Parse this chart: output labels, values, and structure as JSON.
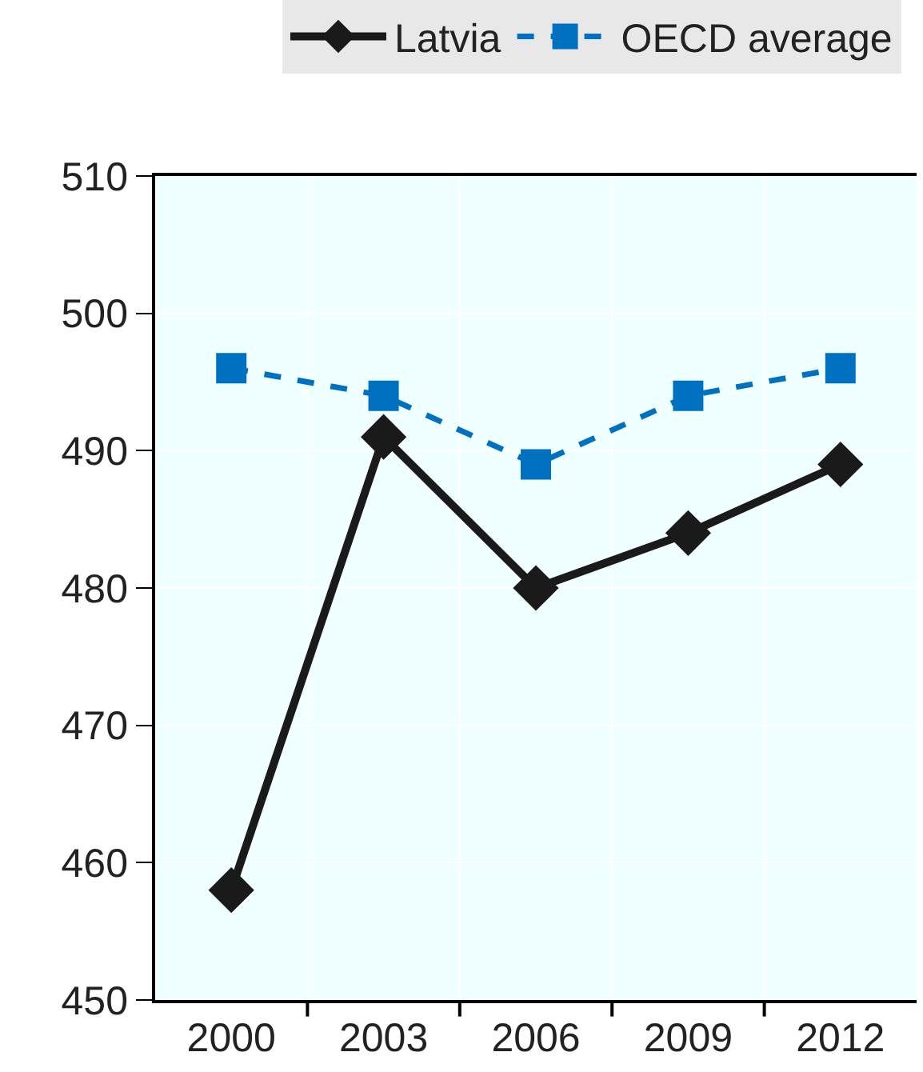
{
  "chart_data": {
    "type": "line",
    "categories": [
      "2000",
      "2003",
      "2006",
      "2009",
      "2012"
    ],
    "series": [
      {
        "name": "Latvia",
        "color": "#1a1a1a",
        "marker": "diamond",
        "line_style": "solid",
        "values": [
          458,
          491,
          480,
          484,
          489
        ]
      },
      {
        "name": "OECD average",
        "color": "#0070c0",
        "marker": "square",
        "line_style": "dashed",
        "values": [
          496,
          494,
          489,
          494,
          496
        ]
      }
    ],
    "ylim": [
      450,
      510
    ],
    "yticks": [
      450,
      460,
      470,
      480,
      490,
      500,
      510
    ],
    "grid": true,
    "legend": "top"
  }
}
